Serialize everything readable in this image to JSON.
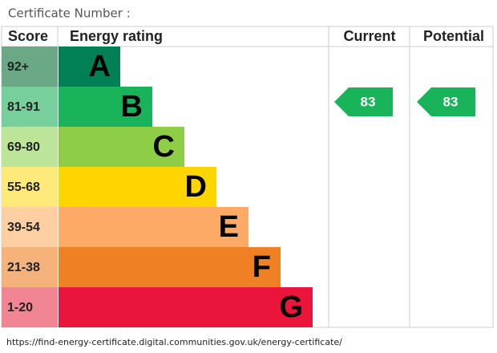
{
  "header": {
    "title": "Certificate Number :"
  },
  "table": {
    "headers": [
      "Score",
      "Energy rating",
      "Current",
      "Potential"
    ]
  },
  "bands": [
    {
      "score": "92+",
      "letter": "A",
      "color": "#008054",
      "light": "#6ba886"
    },
    {
      "score": "81-91",
      "letter": "B",
      "color": "#19b459",
      "light": "#77d09b"
    },
    {
      "score": "69-80",
      "letter": "C",
      "color": "#8dce46",
      "light": "#bde59a"
    },
    {
      "score": "55-68",
      "letter": "D",
      "color": "#ffd500",
      "light": "#ffe97a"
    },
    {
      "score": "39-54",
      "letter": "E",
      "color": "#fcaa65",
      "light": "#fdcfa3"
    },
    {
      "score": "21-38",
      "letter": "F",
      "color": "#ef8023",
      "light": "#f5b37b"
    },
    {
      "score": "1-20",
      "letter": "G",
      "color": "#e9153b",
      "light": "#f18594"
    }
  ],
  "current": {
    "value": 83,
    "band": 1
  },
  "potential": {
    "value": 83,
    "band": 1
  },
  "footer": {
    "url": "https://find-energy-certificate.digital.communities.gov.uk/energy-certificate/"
  }
}
